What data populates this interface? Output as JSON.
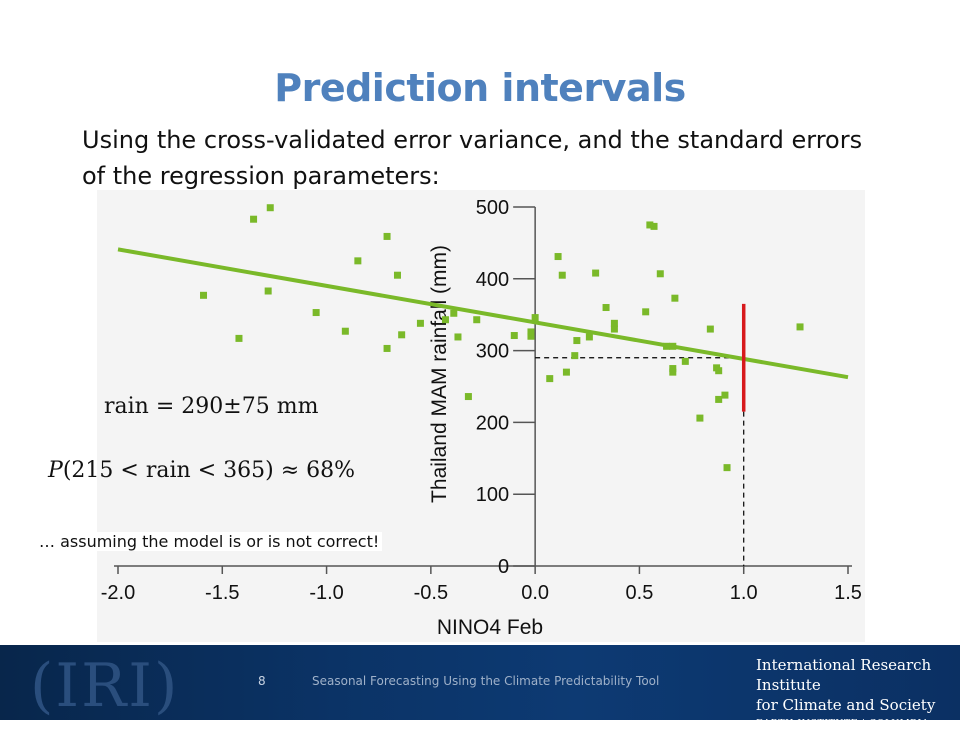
{
  "slide": {
    "title": "Prediction intervals",
    "subtitle": "Using the cross-validated error variance, and the standard errors of the regression parameters:",
    "equation1": {
      "lhs": "rain",
      "op": "=",
      "value": "290",
      "pm": "±",
      "error": "75",
      "unit": "mm"
    },
    "equation2": {
      "func": "P",
      "open": "(",
      "low": "215",
      "lt1": "<",
      "var": "rain",
      "lt2": "<",
      "high": "365",
      "close": ")",
      "approx": "≈",
      "prob": "68%"
    },
    "note": "… assuming the model is or is not correct!"
  },
  "footer": {
    "page_number": "8",
    "text": "Seasonal Forecasting Using the Climate Predictability Tool",
    "logo_mark": "(IRI)",
    "org_line1": "International Research Institute",
    "org_line2": "for Climate and Society",
    "org_line3": "EARTH INSTITUTE | COLUMBIA UNIVERSITY"
  },
  "chart_data": {
    "type": "scatter",
    "xlabel": "NINO4 Feb",
    "ylabel": "Thailand MAM rainfall (mm)",
    "xlim": [
      -2.0,
      1.5
    ],
    "ylim": [
      0,
      500
    ],
    "x_ticks": [
      "-2.0",
      "-1.5",
      "-1.0",
      "-0.5",
      "0.0",
      "0.5",
      "1.0",
      "1.5"
    ],
    "y_ticks": [
      "0",
      "100",
      "200",
      "300",
      "400",
      "500"
    ],
    "grid": false,
    "colors": {
      "points": "#7ab929",
      "fit": "#7ab929",
      "interval": "#d7191c",
      "guide": "#000000"
    },
    "series": [
      {
        "values": [
          {
            "x": -1.59,
            "y": 377
          },
          {
            "x": -1.35,
            "y": 483
          },
          {
            "x": -1.27,
            "y": 499
          },
          {
            "x": -1.42,
            "y": 317
          },
          {
            "x": -1.28,
            "y": 383
          },
          {
            "x": -1.05,
            "y": 353
          },
          {
            "x": -0.91,
            "y": 327
          },
          {
            "x": -0.85,
            "y": 425
          },
          {
            "x": -0.71,
            "y": 459
          },
          {
            "x": -0.71,
            "y": 303
          },
          {
            "x": -0.66,
            "y": 405
          },
          {
            "x": -0.64,
            "y": 322
          },
          {
            "x": -0.55,
            "y": 338
          },
          {
            "x": -0.43,
            "y": 343
          },
          {
            "x": -0.39,
            "y": 352
          },
          {
            "x": -0.37,
            "y": 319
          },
          {
            "x": -0.32,
            "y": 236
          },
          {
            "x": -0.28,
            "y": 343
          },
          {
            "x": -0.1,
            "y": 321
          },
          {
            "x": -0.02,
            "y": 320
          },
          {
            "x": -0.02,
            "y": 326
          },
          {
            "x": 0.0,
            "y": 346
          },
          {
            "x": 0.07,
            "y": 261
          },
          {
            "x": 0.11,
            "y": 431
          },
          {
            "x": 0.13,
            "y": 405
          },
          {
            "x": 0.15,
            "y": 270
          },
          {
            "x": 0.19,
            "y": 293
          },
          {
            "x": 0.2,
            "y": 314
          },
          {
            "x": 0.26,
            "y": 319
          },
          {
            "x": 0.29,
            "y": 408
          },
          {
            "x": 0.34,
            "y": 360
          },
          {
            "x": 0.38,
            "y": 330
          },
          {
            "x": 0.38,
            "y": 338
          },
          {
            "x": 0.53,
            "y": 354
          },
          {
            "x": 0.55,
            "y": 475
          },
          {
            "x": 0.57,
            "y": 473
          },
          {
            "x": 0.6,
            "y": 407
          },
          {
            "x": 0.63,
            "y": 306
          },
          {
            "x": 0.66,
            "y": 275
          },
          {
            "x": 0.66,
            "y": 270
          },
          {
            "x": 0.66,
            "y": 306
          },
          {
            "x": 0.67,
            "y": 373
          },
          {
            "x": 0.72,
            "y": 285
          },
          {
            "x": 0.79,
            "y": 206
          },
          {
            "x": 0.84,
            "y": 330
          },
          {
            "x": 0.87,
            "y": 276
          },
          {
            "x": 0.88,
            "y": 272
          },
          {
            "x": 0.88,
            "y": 232
          },
          {
            "x": 0.91,
            "y": 238
          },
          {
            "x": 0.92,
            "y": 137
          },
          {
            "x": 1.27,
            "y": 333
          }
        ]
      }
    ],
    "fit_line": {
      "x": [
        -2.0,
        1.5
      ],
      "y": [
        441,
        263
      ]
    },
    "prediction": {
      "x": 1.0,
      "y": 290,
      "lower": 215,
      "upper": 365
    }
  }
}
